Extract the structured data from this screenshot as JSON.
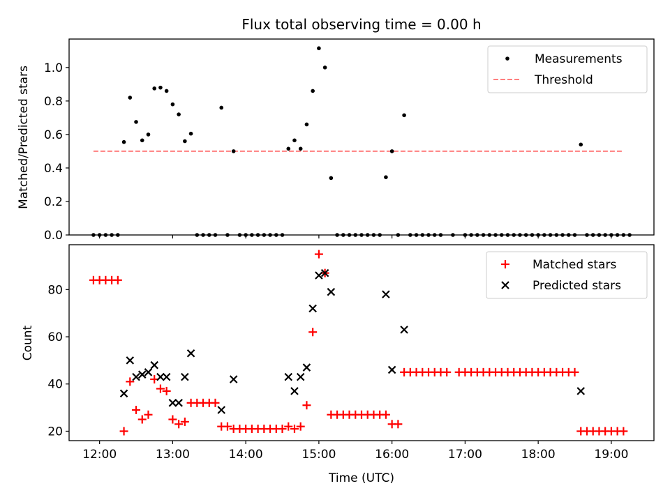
{
  "chart_data": [
    {
      "type": "scatter",
      "title": "Flux total observing time = 0.00 h",
      "xlabel": "",
      "ylabel": "Matched/Predicted stars",
      "xlim": [
        "11:35",
        "19:35"
      ],
      "ylim": [
        0,
        1.17
      ],
      "yticks": [
        0.0,
        0.2,
        0.4,
        0.6,
        0.8,
        1.0
      ],
      "ytick_labels": [
        "0.0",
        "0.2",
        "0.4",
        "0.6",
        "0.8",
        "1.0"
      ],
      "legend_position": "upper right",
      "series": [
        {
          "name": "Measurements",
          "kind": "dot",
          "color": "#000000",
          "points": [
            [
              "11:55",
              0
            ],
            [
              "12:00",
              0
            ],
            [
              "12:05",
              0
            ],
            [
              "12:10",
              0
            ],
            [
              "12:15",
              0
            ],
            [
              "12:20",
              0.555
            ],
            [
              "12:25",
              0.82
            ],
            [
              "12:30",
              0.675
            ],
            [
              "12:35",
              0.565
            ],
            [
              "12:40",
              0.6
            ],
            [
              "12:45",
              0.875
            ],
            [
              "12:50",
              0.88
            ],
            [
              "12:55",
              0.86
            ],
            [
              "13:00",
              0.78
            ],
            [
              "13:05",
              0.72
            ],
            [
              "13:10",
              0.56
            ],
            [
              "13:15",
              0.605
            ],
            [
              "13:20",
              0
            ],
            [
              "13:25",
              0
            ],
            [
              "13:30",
              0
            ],
            [
              "13:35",
              0
            ],
            [
              "13:40",
              0.76
            ],
            [
              "13:45",
              0
            ],
            [
              "13:50",
              0.5
            ],
            [
              "13:55",
              0
            ],
            [
              "14:00",
              0
            ],
            [
              "14:05",
              0
            ],
            [
              "14:10",
              0
            ],
            [
              "14:15",
              0
            ],
            [
              "14:20",
              0
            ],
            [
              "14:25",
              0
            ],
            [
              "14:30",
              0
            ],
            [
              "14:35",
              0.515
            ],
            [
              "14:40",
              0.565
            ],
            [
              "14:45",
              0.515
            ],
            [
              "14:50",
              0.66
            ],
            [
              "14:55",
              0.86
            ],
            [
              "15:00",
              1.115
            ],
            [
              "15:05",
              1.0
            ],
            [
              "15:10",
              0.34
            ],
            [
              "15:15",
              0
            ],
            [
              "15:20",
              0
            ],
            [
              "15:25",
              0
            ],
            [
              "15:30",
              0
            ],
            [
              "15:35",
              0
            ],
            [
              "15:40",
              0
            ],
            [
              "15:45",
              0
            ],
            [
              "15:50",
              0
            ],
            [
              "15:55",
              0.345
            ],
            [
              "16:00",
              0.5
            ],
            [
              "16:05",
              0
            ],
            [
              "16:10",
              0.715
            ],
            [
              "16:15",
              0
            ],
            [
              "16:20",
              0
            ],
            [
              "16:25",
              0
            ],
            [
              "16:30",
              0
            ],
            [
              "16:35",
              0
            ],
            [
              "16:40",
              0
            ],
            [
              "16:50",
              0
            ],
            [
              "17:00",
              0
            ],
            [
              "17:05",
              0
            ],
            [
              "17:10",
              0
            ],
            [
              "17:15",
              0
            ],
            [
              "17:20",
              0
            ],
            [
              "17:25",
              0
            ],
            [
              "17:30",
              0
            ],
            [
              "17:35",
              0
            ],
            [
              "17:40",
              0
            ],
            [
              "17:45",
              0
            ],
            [
              "17:50",
              0
            ],
            [
              "17:55",
              0
            ],
            [
              "18:00",
              0
            ],
            [
              "18:05",
              0
            ],
            [
              "18:10",
              0
            ],
            [
              "18:15",
              0
            ],
            [
              "18:20",
              0
            ],
            [
              "18:25",
              0
            ],
            [
              "18:30",
              0
            ],
            [
              "18:35",
              0.54
            ],
            [
              "18:40",
              0
            ],
            [
              "18:45",
              0
            ],
            [
              "18:50",
              0
            ],
            [
              "18:55",
              0
            ],
            [
              "19:00",
              0
            ],
            [
              "19:05",
              0
            ],
            [
              "19:10",
              0
            ],
            [
              "19:15",
              0
            ]
          ]
        },
        {
          "name": "Threshold",
          "kind": "dashed-line",
          "color": "#ff7f7f",
          "points": [
            [
              "11:55",
              0.5
            ],
            [
              "19:10",
              0.5
            ]
          ]
        }
      ]
    },
    {
      "type": "scatter",
      "title": "",
      "xlabel": "Time (UTC)",
      "ylabel": "Count",
      "xlim": [
        "11:35",
        "19:35"
      ],
      "ylim": [
        16,
        99
      ],
      "xticks": [
        "12:00",
        "13:00",
        "14:00",
        "15:00",
        "16:00",
        "17:00",
        "18:00",
        "19:00"
      ],
      "yticks": [
        20,
        40,
        60,
        80
      ],
      "ytick_labels": [
        "20",
        "40",
        "60",
        "80"
      ],
      "legend_position": "upper right",
      "series": [
        {
          "name": "Matched stars",
          "kind": "plus",
          "color": "#ff0000",
          "points": [
            [
              "11:55",
              84
            ],
            [
              "12:00",
              84
            ],
            [
              "12:05",
              84
            ],
            [
              "12:10",
              84
            ],
            [
              "12:15",
              84
            ],
            [
              "12:20",
              20
            ],
            [
              "12:25",
              41
            ],
            [
              "12:30",
              29
            ],
            [
              "12:35",
              25
            ],
            [
              "12:40",
              27
            ],
            [
              "12:45",
              42
            ],
            [
              "12:50",
              38
            ],
            [
              "12:55",
              37
            ],
            [
              "13:00",
              25
            ],
            [
              "13:05",
              23
            ],
            [
              "13:10",
              24
            ],
            [
              "13:15",
              32
            ],
            [
              "13:20",
              32
            ],
            [
              "13:25",
              32
            ],
            [
              "13:30",
              32
            ],
            [
              "13:35",
              32
            ],
            [
              "13:40",
              22
            ],
            [
              "13:45",
              22
            ],
            [
              "13:50",
              21
            ],
            [
              "13:55",
              21
            ],
            [
              "14:00",
              21
            ],
            [
              "14:05",
              21
            ],
            [
              "14:10",
              21
            ],
            [
              "14:15",
              21
            ],
            [
              "14:20",
              21
            ],
            [
              "14:25",
              21
            ],
            [
              "14:30",
              21
            ],
            [
              "14:35",
              22
            ],
            [
              "14:40",
              21
            ],
            [
              "14:45",
              22
            ],
            [
              "14:50",
              31
            ],
            [
              "14:55",
              62
            ],
            [
              "15:00",
              95
            ],
            [
              "15:05",
              87
            ],
            [
              "15:10",
              27
            ],
            [
              "15:15",
              27
            ],
            [
              "15:20",
              27
            ],
            [
              "15:25",
              27
            ],
            [
              "15:30",
              27
            ],
            [
              "15:35",
              27
            ],
            [
              "15:40",
              27
            ],
            [
              "15:45",
              27
            ],
            [
              "15:50",
              27
            ],
            [
              "15:55",
              27
            ],
            [
              "16:00",
              23
            ],
            [
              "16:05",
              23
            ],
            [
              "16:10",
              45
            ],
            [
              "16:15",
              45
            ],
            [
              "16:20",
              45
            ],
            [
              "16:25",
              45
            ],
            [
              "16:30",
              45
            ],
            [
              "16:35",
              45
            ],
            [
              "16:40",
              45
            ],
            [
              "16:45",
              45
            ],
            [
              "16:55",
              45
            ],
            [
              "17:00",
              45
            ],
            [
              "17:05",
              45
            ],
            [
              "17:10",
              45
            ],
            [
              "17:15",
              45
            ],
            [
              "17:20",
              45
            ],
            [
              "17:25",
              45
            ],
            [
              "17:30",
              45
            ],
            [
              "17:35",
              45
            ],
            [
              "17:40",
              45
            ],
            [
              "17:45",
              45
            ],
            [
              "17:50",
              45
            ],
            [
              "17:55",
              45
            ],
            [
              "18:00",
              45
            ],
            [
              "18:05",
              45
            ],
            [
              "18:10",
              45
            ],
            [
              "18:15",
              45
            ],
            [
              "18:20",
              45
            ],
            [
              "18:25",
              45
            ],
            [
              "18:30",
              45
            ],
            [
              "18:35",
              20
            ],
            [
              "18:40",
              20
            ],
            [
              "18:45",
              20
            ],
            [
              "18:50",
              20
            ],
            [
              "18:55",
              20
            ],
            [
              "19:00",
              20
            ],
            [
              "19:05",
              20
            ],
            [
              "19:10",
              20
            ]
          ]
        },
        {
          "name": "Predicted stars",
          "kind": "x",
          "color": "#000000",
          "points": [
            [
              "12:20",
              36
            ],
            [
              "12:25",
              50
            ],
            [
              "12:30",
              43
            ],
            [
              "12:35",
              44
            ],
            [
              "12:40",
              45
            ],
            [
              "12:45",
              48
            ],
            [
              "12:50",
              43
            ],
            [
              "12:55",
              43
            ],
            [
              "13:00",
              32
            ],
            [
              "13:05",
              32
            ],
            [
              "13:10",
              43
            ],
            [
              "13:15",
              53
            ],
            [
              "13:40",
              29
            ],
            [
              "13:50",
              42
            ],
            [
              "14:35",
              43
            ],
            [
              "14:40",
              37
            ],
            [
              "14:45",
              43
            ],
            [
              "14:50",
              47
            ],
            [
              "14:55",
              72
            ],
            [
              "15:00",
              86
            ],
            [
              "15:05",
              87
            ],
            [
              "15:10",
              79
            ],
            [
              "15:55",
              78
            ],
            [
              "16:00",
              46
            ],
            [
              "16:10",
              63
            ],
            [
              "18:35",
              37
            ]
          ]
        }
      ]
    }
  ]
}
